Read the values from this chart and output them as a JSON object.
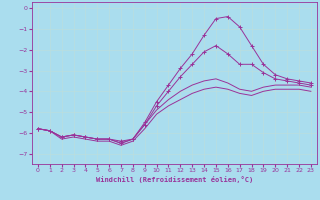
{
  "background_color": "#aaddee",
  "grid_color": "#bbdddd",
  "line_color": "#993399",
  "xlabel": "Windchill (Refroidissement éolien,°C)",
  "xlim": [
    -0.5,
    23.5
  ],
  "ylim": [
    -7.5,
    0.3
  ],
  "yticks": [
    0,
    -1,
    -2,
    -3,
    -4,
    -5,
    -6,
    -7
  ],
  "xticks": [
    0,
    1,
    2,
    3,
    4,
    5,
    6,
    7,
    8,
    9,
    10,
    11,
    12,
    13,
    14,
    15,
    16,
    17,
    18,
    19,
    20,
    21,
    22,
    23
  ],
  "line1_x": [
    0,
    1,
    2,
    3,
    4,
    5,
    6,
    7,
    8,
    9,
    10,
    11,
    12,
    13,
    14,
    15,
    16,
    17,
    18,
    19,
    20,
    21,
    22,
    23
  ],
  "line1_y": [
    -5.8,
    -5.9,
    -6.2,
    -6.1,
    -6.2,
    -6.3,
    -6.3,
    -6.5,
    -6.3,
    -5.5,
    -4.5,
    -3.7,
    -2.9,
    -2.2,
    -1.3,
    -0.5,
    -0.4,
    -0.9,
    -1.8,
    -2.7,
    -3.2,
    -3.4,
    -3.5,
    -3.6
  ],
  "line2_x": [
    0,
    1,
    2,
    3,
    4,
    5,
    6,
    7,
    8,
    9,
    10,
    11,
    12,
    13,
    14,
    15,
    16,
    17,
    18,
    19,
    20,
    21,
    22,
    23
  ],
  "line2_y": [
    -5.8,
    -5.9,
    -6.2,
    -6.1,
    -6.2,
    -6.3,
    -6.3,
    -6.4,
    -6.3,
    -5.6,
    -4.7,
    -4.0,
    -3.3,
    -2.7,
    -2.1,
    -1.8,
    -2.2,
    -2.7,
    -2.7,
    -3.1,
    -3.4,
    -3.5,
    -3.6,
    -3.7
  ],
  "line3_x": [
    0,
    1,
    2,
    3,
    4,
    5,
    6,
    7,
    8,
    9,
    10,
    11,
    12,
    13,
    14,
    15,
    16,
    17,
    18,
    19,
    20,
    21,
    22,
    23
  ],
  "line3_y": [
    -5.8,
    -5.9,
    -6.2,
    -6.1,
    -6.2,
    -6.3,
    -6.3,
    -6.5,
    -6.3,
    -5.6,
    -4.9,
    -4.4,
    -4.0,
    -3.7,
    -3.5,
    -3.4,
    -3.6,
    -3.9,
    -4.0,
    -3.8,
    -3.7,
    -3.7,
    -3.7,
    -3.8
  ],
  "line4_x": [
    0,
    1,
    2,
    3,
    4,
    5,
    6,
    7,
    8,
    9,
    10,
    11,
    12,
    13,
    14,
    15,
    16,
    17,
    18,
    19,
    20,
    21,
    22,
    23
  ],
  "line4_y": [
    -5.8,
    -5.9,
    -6.3,
    -6.2,
    -6.3,
    -6.4,
    -6.4,
    -6.6,
    -6.4,
    -5.8,
    -5.1,
    -4.7,
    -4.4,
    -4.1,
    -3.9,
    -3.8,
    -3.9,
    -4.1,
    -4.2,
    -4.0,
    -3.9,
    -3.9,
    -3.9,
    -4.0
  ]
}
